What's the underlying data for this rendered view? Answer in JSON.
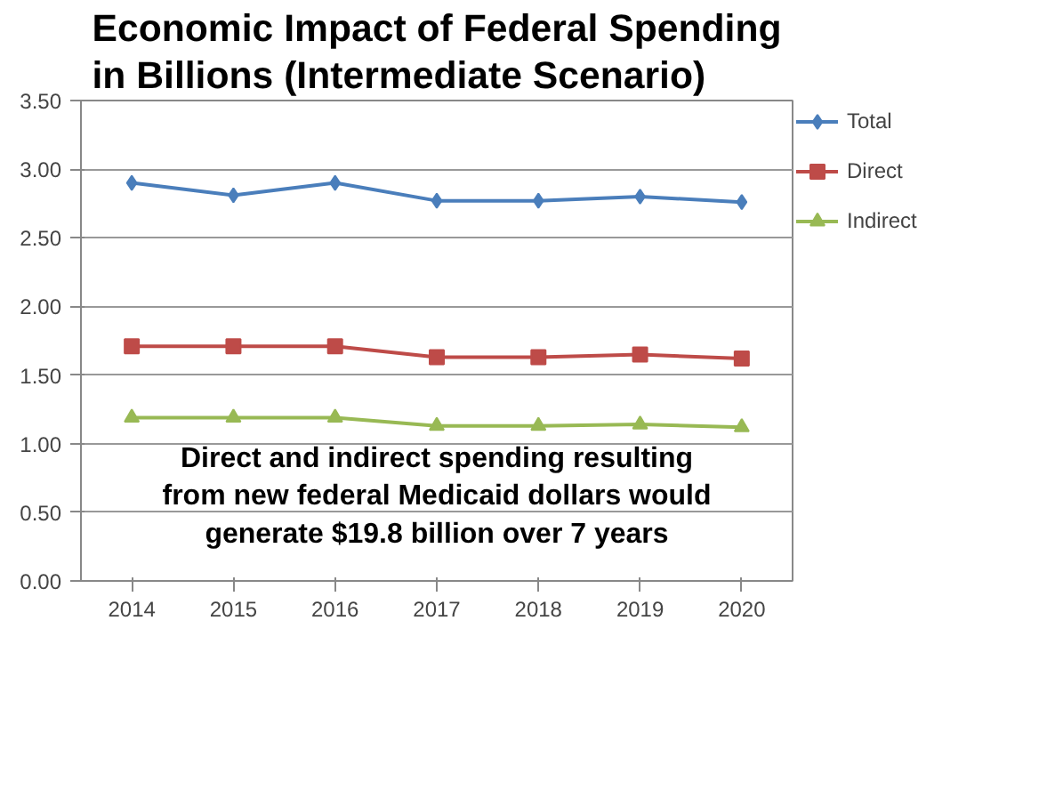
{
  "chart_data": {
    "type": "line",
    "title": "Economic Impact of Federal Spending in Billions (Intermediate Scenario)",
    "categories": [
      "2014",
      "2015",
      "2016",
      "2017",
      "2018",
      "2019",
      "2020"
    ],
    "series": [
      {
        "name": "Total",
        "color": "#4a7ebb",
        "marker": "diamond",
        "values": [
          2.9,
          2.81,
          2.9,
          2.77,
          2.77,
          2.8,
          2.76
        ]
      },
      {
        "name": "Direct",
        "color": "#be4b48",
        "marker": "square",
        "values": [
          1.71,
          1.71,
          1.71,
          1.63,
          1.63,
          1.65,
          1.62
        ]
      },
      {
        "name": "Indirect",
        "color": "#98b954",
        "marker": "triangle",
        "values": [
          1.19,
          1.19,
          1.19,
          1.13,
          1.13,
          1.14,
          1.12
        ]
      }
    ],
    "ylim": [
      0,
      3.5
    ],
    "yticks": [
      {
        "value": 0,
        "label": "0.00"
      },
      {
        "value": 0.5,
        "label": "0.50"
      },
      {
        "value": 1,
        "label": "1.00"
      },
      {
        "value": 1.5,
        "label": "1.50"
      },
      {
        "value": 2,
        "label": "2.00"
      },
      {
        "value": 2.5,
        "label": "2.50"
      },
      {
        "value": 3,
        "label": "3.00"
      },
      {
        "value": 3.5,
        "label": "3.50"
      }
    ],
    "grid": "y",
    "legend": "right",
    "line_style": "solid",
    "annotations": [
      "Direct and indirect spending resulting\nfrom new federal Medicaid dollars would\ngenerate $19.8 billion over 7 years"
    ]
  }
}
